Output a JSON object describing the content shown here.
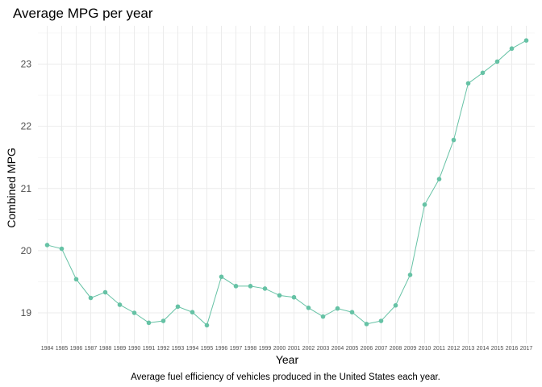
{
  "chart_data": {
    "type": "line",
    "title": "Average MPG per year",
    "xlabel": "Year",
    "ylabel": "Combined MPG",
    "caption": "Average fuel efficiency of vehicles produced in the United States each year.",
    "x": [
      1984,
      1985,
      1986,
      1987,
      1988,
      1989,
      1990,
      1991,
      1992,
      1993,
      1994,
      1995,
      1996,
      1997,
      1998,
      1999,
      2000,
      2001,
      2002,
      2003,
      2004,
      2005,
      2006,
      2007,
      2008,
      2009,
      2010,
      2011,
      2012,
      2013,
      2014,
      2015,
      2016,
      2017
    ],
    "series": [
      {
        "values": [
          20.09,
          20.03,
          19.54,
          19.24,
          19.33,
          19.13,
          19.0,
          18.84,
          18.87,
          19.1,
          19.01,
          18.8,
          19.58,
          19.43,
          19.43,
          19.39,
          19.28,
          19.25,
          19.08,
          18.94,
          19.07,
          19.01,
          18.82,
          18.87,
          19.12,
          19.61,
          20.74,
          21.15,
          21.78,
          22.69,
          22.86,
          23.04,
          23.25,
          23.38
        ]
      }
    ],
    "yticks": [
      19,
      20,
      21,
      22,
      23
    ],
    "ylim": [
      18.55,
      23.6
    ],
    "grid": true,
    "colors": {
      "line": "#66c2a5",
      "point": "#66c2a5"
    }
  }
}
